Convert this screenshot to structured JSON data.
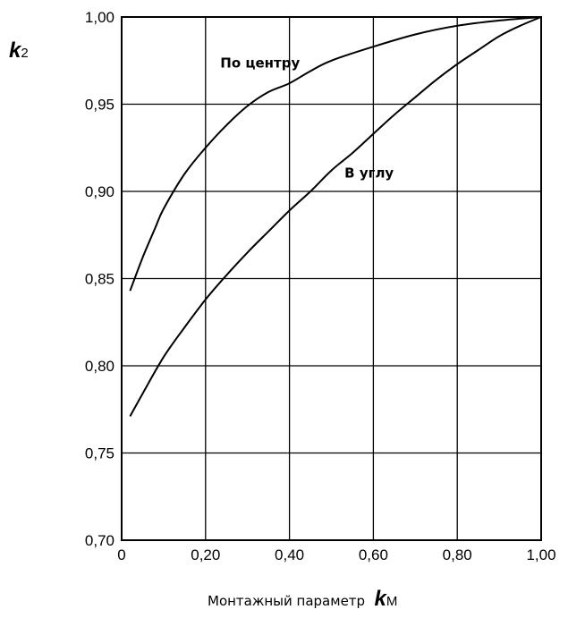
{
  "chart_data": {
    "type": "line",
    "xlabel": {
      "text": "Монтажный параметр",
      "var": "k",
      "sub": "М"
    },
    "ylabel": {
      "var": "k",
      "sub": "2"
    },
    "xlim": [
      0,
      1.0
    ],
    "ylim": [
      0.7,
      1.0
    ],
    "grid": true,
    "x_ticks": [
      {
        "v": 0,
        "label": "0"
      },
      {
        "v": 0.2,
        "label": "0,20"
      },
      {
        "v": 0.4,
        "label": "0,40"
      },
      {
        "v": 0.6,
        "label": "0,60"
      },
      {
        "v": 0.8,
        "label": "0,80"
      },
      {
        "v": 1.0,
        "label": "1,00"
      }
    ],
    "y_ticks": [
      {
        "v": 0.7,
        "label": "0,70"
      },
      {
        "v": 0.75,
        "label": "0,75"
      },
      {
        "v": 0.8,
        "label": "0,80"
      },
      {
        "v": 0.85,
        "label": "0,85"
      },
      {
        "v": 0.9,
        "label": "0,90"
      },
      {
        "v": 0.95,
        "label": "0,95"
      },
      {
        "v": 1.0,
        "label": "1,00"
      }
    ],
    "series": [
      {
        "name": "По центру",
        "label_at": [
          0.33,
          0.971
        ],
        "points": [
          [
            0.02,
            0.843
          ],
          [
            0.05,
            0.862
          ],
          [
            0.08,
            0.879
          ],
          [
            0.1,
            0.89
          ],
          [
            0.15,
            0.91
          ],
          [
            0.2,
            0.925
          ],
          [
            0.25,
            0.938
          ],
          [
            0.3,
            0.949
          ],
          [
            0.35,
            0.957
          ],
          [
            0.4,
            0.962
          ],
          [
            0.45,
            0.969
          ],
          [
            0.5,
            0.975
          ],
          [
            0.6,
            0.983
          ],
          [
            0.7,
            0.99
          ],
          [
            0.8,
            0.995
          ],
          [
            0.9,
            0.998
          ],
          [
            1.0,
            1.0
          ]
        ]
      },
      {
        "name": "В углу",
        "label_at": [
          0.59,
          0.908
        ],
        "points": [
          [
            0.02,
            0.771
          ],
          [
            0.05,
            0.784
          ],
          [
            0.1,
            0.805
          ],
          [
            0.15,
            0.822
          ],
          [
            0.2,
            0.838
          ],
          [
            0.25,
            0.852
          ],
          [
            0.3,
            0.865
          ],
          [
            0.35,
            0.877
          ],
          [
            0.4,
            0.889
          ],
          [
            0.45,
            0.9
          ],
          [
            0.5,
            0.912
          ],
          [
            0.55,
            0.922
          ],
          [
            0.6,
            0.933
          ],
          [
            0.65,
            0.944
          ],
          [
            0.7,
            0.954
          ],
          [
            0.75,
            0.964
          ],
          [
            0.8,
            0.973
          ],
          [
            0.85,
            0.981
          ],
          [
            0.9,
            0.989
          ],
          [
            0.95,
            0.995
          ],
          [
            1.0,
            1.0
          ]
        ]
      }
    ]
  }
}
